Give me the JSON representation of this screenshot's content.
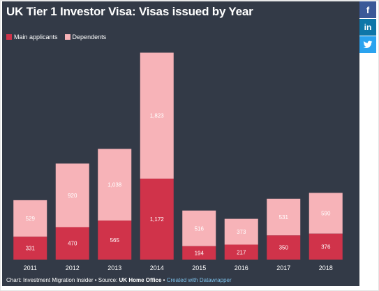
{
  "title": "UK Tier 1 Investor Visa: Visas issued by Year",
  "legend": [
    {
      "label": "Main applicants",
      "color": "#d0334a"
    },
    {
      "label": "Dependents",
      "color": "#f7b3b8"
    }
  ],
  "social": [
    {
      "name": "facebook-icon",
      "glyph": "f",
      "color": "#3b5998"
    },
    {
      "name": "linkedin-icon",
      "glyph": "in",
      "color": "#0e76a8"
    },
    {
      "name": "twitter-icon",
      "glyph": "",
      "color": "#2aa3ef"
    }
  ],
  "footer": {
    "prefix": "Chart: Investment Migration Insider • Source: ",
    "source": "UK Home Office",
    "sep": " • ",
    "link": "Created with Datawrapper"
  },
  "chart_data": {
    "type": "bar",
    "stacked": true,
    "categories": [
      "2011",
      "2012",
      "2013",
      "2014",
      "2015",
      "2016",
      "2017",
      "2018"
    ],
    "series": [
      {
        "name": "Main applicants",
        "color": "#d0334a",
        "values": [
          331,
          470,
          565,
          1172,
          194,
          217,
          350,
          376
        ]
      },
      {
        "name": "Dependents",
        "color": "#f7b3b8",
        "values": [
          529,
          920,
          1038,
          1823,
          516,
          373,
          531,
          590
        ]
      }
    ],
    "value_labels": {
      "Main applicants": [
        "331",
        "470",
        "565",
        "1,172",
        "194",
        "217",
        "350",
        "376"
      ],
      "Dependents": [
        "529",
        "920",
        "1,038",
        "1,823",
        "516",
        "373",
        "531",
        "590"
      ]
    }
  }
}
